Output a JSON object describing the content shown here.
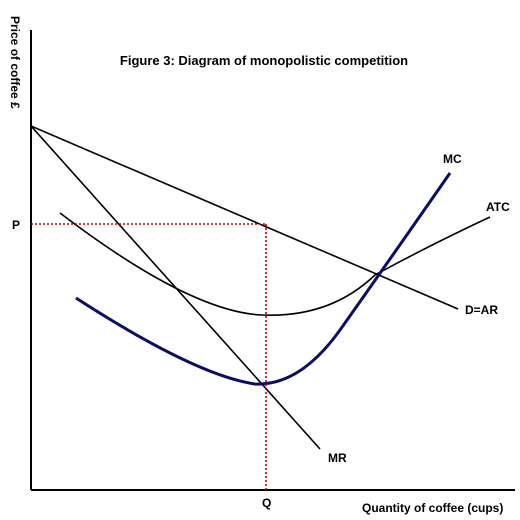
{
  "figure": {
    "title": "Figure 3: Diagram of monopolistic competition",
    "y_axis_label": "Price of coffee £",
    "x_axis_label": "Quantity of coffee (cups)",
    "price_marker": "P",
    "quantity_marker": "Q"
  },
  "curves": {
    "mc": "MC",
    "atc": "ATC",
    "demand": "D=AR",
    "mr": "MR"
  },
  "colors": {
    "axis": "#000000",
    "mc": "#0b0b6e",
    "guide": "#cc0000"
  }
}
